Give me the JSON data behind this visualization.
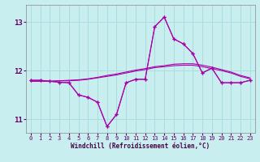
{
  "xlabel": "Windchill (Refroidissement éolien,°C)",
  "xlim": [
    -0.5,
    23.5
  ],
  "ylim": [
    10.72,
    13.35
  ],
  "yticks": [
    11,
    12,
    13
  ],
  "xticks": [
    0,
    1,
    2,
    3,
    4,
    5,
    6,
    7,
    8,
    9,
    10,
    11,
    12,
    13,
    14,
    15,
    16,
    17,
    18,
    19,
    20,
    21,
    22,
    23
  ],
  "bg_color": "#c8eef0",
  "grid_color": "#aadddd",
  "line_color": "#aa00aa",
  "line1_x": [
    0,
    1,
    2,
    3,
    4,
    5,
    6,
    7,
    8,
    9,
    10,
    11,
    12,
    13,
    14,
    15,
    16,
    17,
    18,
    19,
    20,
    21,
    22,
    23
  ],
  "line1_y": [
    11.8,
    11.8,
    11.78,
    11.76,
    11.75,
    11.5,
    11.45,
    11.35,
    10.85,
    11.1,
    11.75,
    11.82,
    11.82,
    12.9,
    13.1,
    12.65,
    12.55,
    12.35,
    11.95,
    12.05,
    11.75,
    11.75,
    11.75,
    11.8
  ],
  "line2_x": [
    0,
    1,
    2,
    3,
    4,
    5,
    6,
    7,
    8,
    9,
    10,
    11,
    12,
    13,
    14,
    15,
    16,
    17,
    18,
    19,
    20,
    21,
    22,
    23
  ],
  "line2_y": [
    11.8,
    11.8,
    11.78,
    11.76,
    11.75,
    11.5,
    11.45,
    11.35,
    10.85,
    11.1,
    11.75,
    11.82,
    11.82,
    12.9,
    13.1,
    12.65,
    12.55,
    12.35,
    11.95,
    12.05,
    11.75,
    11.75,
    11.75,
    11.8
  ],
  "line3_x": [
    0,
    1,
    2,
    3,
    4,
    5,
    6,
    7,
    8,
    9,
    10,
    11,
    12,
    13,
    14,
    15,
    16,
    17,
    18,
    19,
    20,
    21,
    22,
    23
  ],
  "line3_y": [
    11.78,
    11.78,
    11.78,
    11.79,
    11.79,
    11.8,
    11.82,
    11.85,
    11.88,
    11.91,
    11.95,
    11.99,
    12.02,
    12.06,
    12.08,
    12.1,
    12.11,
    12.11,
    12.08,
    12.04,
    12.0,
    11.95,
    11.88,
    11.83
  ],
  "line4_x": [
    0,
    1,
    2,
    3,
    4,
    5,
    6,
    7,
    8,
    9,
    10,
    11,
    12,
    13,
    14,
    15,
    16,
    17,
    18,
    19,
    20,
    21,
    22,
    23
  ],
  "line4_y": [
    11.78,
    11.78,
    11.78,
    11.79,
    11.8,
    11.81,
    11.83,
    11.86,
    11.9,
    11.93,
    11.97,
    12.01,
    12.04,
    12.08,
    12.1,
    12.13,
    12.14,
    12.14,
    12.11,
    12.07,
    12.02,
    11.97,
    11.9,
    11.85
  ]
}
